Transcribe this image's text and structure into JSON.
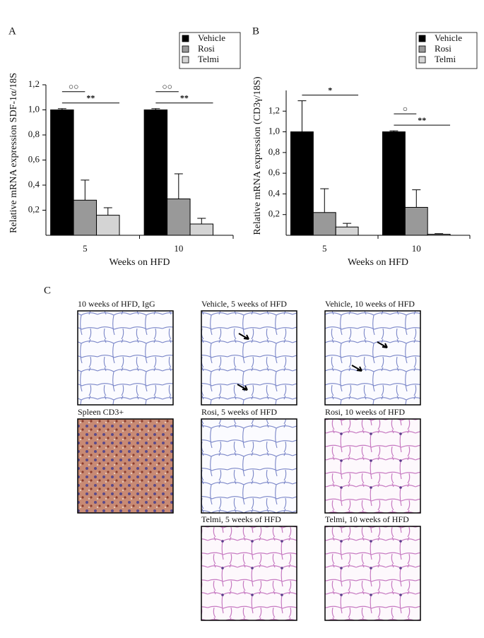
{
  "chart_data": [
    {
      "type": "bar",
      "panel_label": "A",
      "ylabel": "Relative mRNA expression SDF-1α/18S",
      "xlabel": "Weeks on HFD",
      "categories": [
        "5",
        "10"
      ],
      "series": [
        {
          "name": "Vehicle",
          "color": "#000000",
          "values": [
            1.0,
            1.0
          ],
          "errors": [
            0.01,
            0.01
          ]
        },
        {
          "name": "Rosi",
          "color": "#999999",
          "values": [
            0.28,
            0.29
          ],
          "errors": [
            0.16,
            0.2
          ]
        },
        {
          "name": "Telmi",
          "color": "#d4d4d4",
          "values": [
            0.16,
            0.09
          ],
          "errors": [
            0.06,
            0.045
          ]
        }
      ],
      "ylim": [
        0,
        1.2
      ],
      "yticks": [
        {
          "value": 0.2,
          "label": "0,2"
        },
        {
          "value": 0.4,
          "label": "0,4"
        },
        {
          "value": 0.6,
          "label": "0,6"
        },
        {
          "value": 0.8,
          "label": "0,8"
        },
        {
          "value": 1.0,
          "label": "1,0"
        },
        {
          "value": 1.2,
          "label": "1,2"
        }
      ],
      "annotations": [
        {
          "text": "○○",
          "category": "5",
          "from": "Vehicle",
          "to": "Rosi"
        },
        {
          "text": "**",
          "category": "5",
          "from": "Vehicle",
          "to": "Telmi"
        },
        {
          "text": "○○",
          "category": "10",
          "from": "Vehicle",
          "to": "Rosi"
        },
        {
          "text": "**",
          "category": "10",
          "from": "Vehicle",
          "to": "Telmi"
        }
      ],
      "legend": "upper right"
    },
    {
      "type": "bar",
      "panel_label": "B",
      "ylabel": "Relative mRNA expression (CD3γ/18S)",
      "xlabel": "Weeks on HFD",
      "categories": [
        "5",
        "10"
      ],
      "series": [
        {
          "name": "Vehicle",
          "color": "#000000",
          "values": [
            1.0,
            1.0
          ],
          "errors": [
            0.3,
            0.01
          ]
        },
        {
          "name": "Rosi",
          "color": "#999999",
          "values": [
            0.22,
            0.27
          ],
          "errors": [
            0.23,
            0.17
          ]
        },
        {
          "name": "Telmi",
          "color": "#d4d4d4",
          "values": [
            0.08,
            0.01
          ],
          "errors": [
            0.035,
            0.005
          ]
        }
      ],
      "ylim": [
        0,
        1.4
      ],
      "yticks": [
        {
          "value": 0.2,
          "label": "0,2"
        },
        {
          "value": 0.4,
          "label": "0,4"
        },
        {
          "value": 0.6,
          "label": "0,6"
        },
        {
          "value": 0.8,
          "label": "0,8"
        },
        {
          "value": 1.0,
          "label": "1,0"
        },
        {
          "value": 1.2,
          "label": "1,2"
        }
      ],
      "annotations": [
        {
          "text": "*",
          "category": "5",
          "from": "Vehicle",
          "to": "Telmi"
        },
        {
          "text": "○",
          "category": "10",
          "from": "Vehicle",
          "to": "Rosi"
        },
        {
          "text": "**",
          "category": "10",
          "from": "Vehicle",
          "to": "Telmi"
        }
      ],
      "legend": "upper right"
    }
  ],
  "panel_c": {
    "label": "C",
    "images": [
      {
        "caption": "10 weeks of HFD, IgG"
      },
      {
        "caption": "Vehicle, 5 weeks of HFD"
      },
      {
        "caption": "Vehicle, 10 weeks of HFD"
      },
      {
        "caption": "Spleen CD3+"
      },
      {
        "caption": "Rosi, 5 weeks of HFD"
      },
      {
        "caption": "Rosi, 10 weeks of HFD"
      },
      {
        "caption": "Telmi, 5 weeks of HFD"
      },
      {
        "caption": "Telmi, 10 weeks of HFD"
      }
    ]
  }
}
